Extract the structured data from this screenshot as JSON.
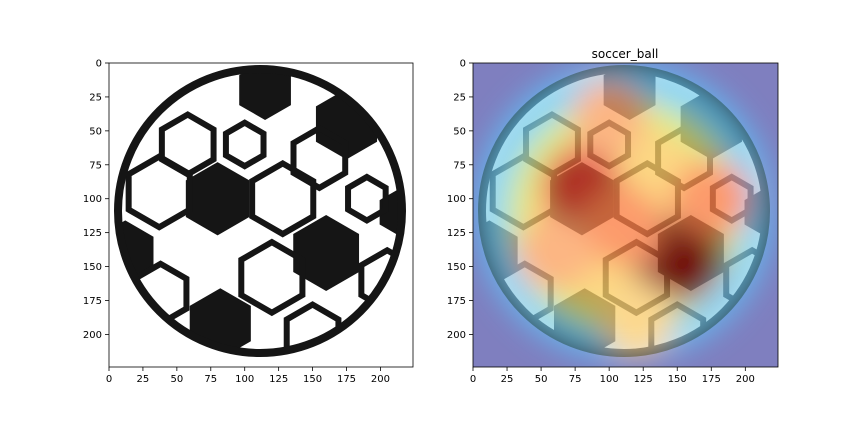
{
  "chart_data": [
    {
      "type": "image",
      "title": "",
      "image_size": [
        224,
        224
      ],
      "xlim": [
        0,
        224
      ],
      "ylim": [
        224,
        0
      ],
      "xticks": [
        0,
        25,
        50,
        75,
        100,
        125,
        150,
        175,
        200
      ],
      "yticks": [
        0,
        25,
        50,
        75,
        100,
        125,
        150,
        175,
        200
      ],
      "content": "soccer-ball-photo"
    },
    {
      "type": "heatmap",
      "title": "soccer_ball",
      "image_size": [
        224,
        224
      ],
      "xlim": [
        0,
        224
      ],
      "ylim": [
        224,
        0
      ],
      "xticks": [
        0,
        25,
        50,
        75,
        100,
        125,
        150,
        175,
        200
      ],
      "yticks": [
        0,
        25,
        50,
        75,
        100,
        125,
        150,
        175,
        200
      ],
      "colormap": "jet",
      "overlay": "soccer-ball-photo",
      "hotspots": [
        {
          "x": 150,
          "y": 145,
          "intensity": 1.0
        },
        {
          "x": 80,
          "y": 90,
          "intensity": 0.8
        },
        {
          "x": 110,
          "y": 120,
          "intensity": 0.75
        },
        {
          "x": 175,
          "y": 100,
          "intensity": 0.7
        },
        {
          "x": 60,
          "y": 140,
          "intensity": 0.65
        },
        {
          "x": 100,
          "y": 40,
          "intensity": 0.6
        },
        {
          "x": 120,
          "y": 190,
          "intensity": 0.55
        }
      ]
    }
  ]
}
